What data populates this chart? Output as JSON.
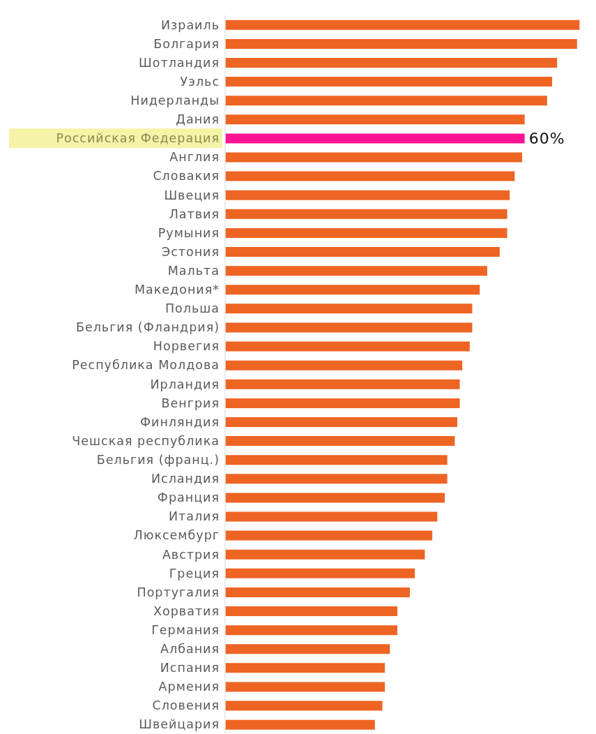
{
  "chart_data": {
    "type": "bar",
    "orientation": "horizontal",
    "categories": [
      "Израиль",
      "Болгария",
      "Шотландия",
      "Уэльс",
      "Нидерланды",
      "Дания",
      "Российская Федерация",
      "Англия",
      "Словакия",
      "Швеция",
      "Латвия",
      "Румыния",
      "Эстония",
      "Мальта",
      "Македония*",
      "Польша",
      "Бельгия (Фландрия)",
      "Норвегия",
      "Республика Молдова",
      "Ирландия",
      "Венгрия",
      "Финляндия",
      "Чешская республика",
      "Бельгия (франц.)",
      "Исландия",
      "Франция",
      "Италия",
      "Люксембург",
      "Австрия",
      "Греция",
      "Португалия",
      "Хорватия",
      "Германия",
      "Албания",
      "Испания",
      "Армения",
      "Словения",
      "Швейцария"
    ],
    "values": [
      71,
      70.5,
      66.5,
      65.5,
      64.5,
      60,
      60,
      59.5,
      58,
      57,
      56.5,
      56.5,
      55,
      52.5,
      51,
      49.5,
      49.5,
      49,
      47.5,
      47,
      47,
      46.5,
      46,
      44.5,
      44.5,
      44,
      42.5,
      41.5,
      40,
      38,
      37,
      34.5,
      34.5,
      33,
      32,
      32,
      31.5,
      30
    ],
    "colors": [
      "#ee6423",
      "#ee6423",
      "#ee6423",
      "#ee6423",
      "#ee6423",
      "#ee6423",
      "#ff1493",
      "#ee6423",
      "#ee6423",
      "#ee6423",
      "#ee6423",
      "#ee6423",
      "#ee6423",
      "#ee6423",
      "#ee6423",
      "#ee6423",
      "#ee6423",
      "#ee6423",
      "#ee6423",
      "#ee6423",
      "#ee6423",
      "#ee6423",
      "#ee6423",
      "#ee6423",
      "#ee6423",
      "#ee6423",
      "#ee6423",
      "#ee6423",
      "#ee6423",
      "#ee6423",
      "#ee6423",
      "#ee6423",
      "#ee6423",
      "#ee6423",
      "#ee6423",
      "#ee6423",
      "#ee6423",
      "#ee6423"
    ],
    "value_labels": [
      null,
      null,
      null,
      null,
      null,
      null,
      "60%",
      null,
      null,
      null,
      null,
      null,
      null,
      null,
      null,
      null,
      null,
      null,
      null,
      null,
      null,
      null,
      null,
      null,
      null,
      null,
      null,
      null,
      null,
      null,
      null,
      null,
      null,
      null,
      null,
      null,
      null,
      null
    ],
    "xlim": [
      0,
      71.5
    ],
    "tick_labels": "y"
  }
}
